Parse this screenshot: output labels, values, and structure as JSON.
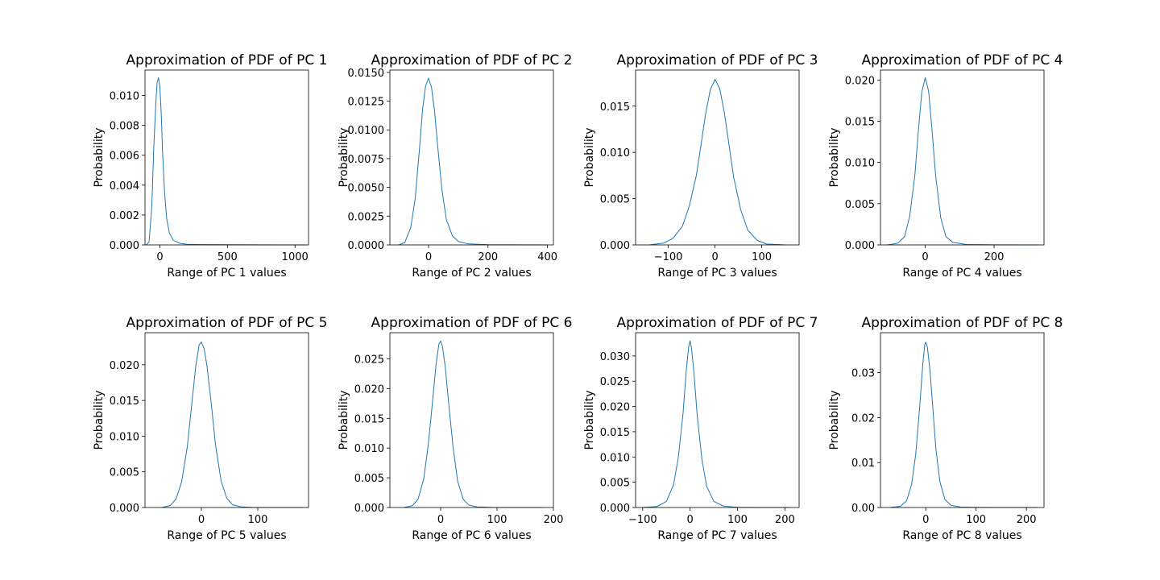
{
  "chart_data": [
    {
      "type": "line",
      "title": "Approximation of PDF of PC 1",
      "xlabel": "Range of PC 1 values",
      "ylabel": "Probability",
      "xlim": [
        -110,
        1100
      ],
      "ylim": [
        0,
        0.0117
      ],
      "xticks": [
        0,
        500,
        1000
      ],
      "yticks": [
        0.0,
        0.002,
        0.004,
        0.006,
        0.008,
        0.01
      ],
      "ytick_decimals": 3,
      "x": [
        -100,
        -80,
        -60,
        -45,
        -30,
        -20,
        -10,
        0,
        10,
        20,
        35,
        50,
        70,
        100,
        150,
        200,
        300,
        500,
        700,
        900,
        1080
      ],
      "y": [
        0,
        0.0002,
        0.0025,
        0.0065,
        0.0095,
        0.0109,
        0.0112,
        0.0106,
        0.0088,
        0.0062,
        0.0035,
        0.0018,
        0.0008,
        0.0003,
        0.0001,
        4e-05,
        2e-05,
        1e-05,
        5e-06,
        2e-06,
        0
      ]
    },
    {
      "type": "line",
      "title": "Approximation of PDF of PC 2",
      "xlabel": "Range of PC 2 values",
      "ylabel": "Probability",
      "xlim": [
        -130,
        420
      ],
      "ylim": [
        0,
        0.0152
      ],
      "xticks": [
        0,
        200,
        400
      ],
      "yticks": [
        0.0,
        0.0025,
        0.005,
        0.0075,
        0.01,
        0.0125,
        0.015
      ],
      "ytick_decimals": 4,
      "x": [
        -100,
        -80,
        -60,
        -45,
        -30,
        -20,
        -10,
        0,
        10,
        20,
        30,
        45,
        60,
        80,
        100,
        130,
        200,
        300,
        400
      ],
      "y": [
        0,
        0.0002,
        0.0015,
        0.004,
        0.0085,
        0.0118,
        0.0138,
        0.0145,
        0.0137,
        0.0117,
        0.0088,
        0.0048,
        0.0022,
        0.0008,
        0.0003,
        0.0001,
        2e-05,
        5e-06,
        0
      ]
    },
    {
      "type": "line",
      "title": "Approximation of PDF of PC 3",
      "xlabel": "Range of PC 3 values",
      "ylabel": "Probability",
      "xlim": [
        -170,
        180
      ],
      "ylim": [
        0,
        0.0189
      ],
      "xticks": [
        -100,
        0,
        100
      ],
      "yticks": [
        0.0,
        0.005,
        0.01,
        0.015
      ],
      "ytick_decimals": 3,
      "x": [
        -140,
        -110,
        -90,
        -70,
        -55,
        -40,
        -30,
        -20,
        -10,
        0,
        10,
        20,
        30,
        40,
        55,
        70,
        90,
        110,
        150
      ],
      "y": [
        0,
        0.0002,
        0.0007,
        0.002,
        0.0042,
        0.0075,
        0.0108,
        0.0142,
        0.0168,
        0.0179,
        0.0169,
        0.0143,
        0.0108,
        0.0073,
        0.0038,
        0.0016,
        0.0005,
        0.0001,
        0
      ]
    },
    {
      "type": "line",
      "title": "Approximation of PDF of PC 4",
      "xlabel": "Range of PC 4 values",
      "ylabel": "Probability",
      "xlim": [
        -130,
        345
      ],
      "ylim": [
        0,
        0.0212
      ],
      "xticks": [
        0,
        200
      ],
      "yticks": [
        0.0,
        0.005,
        0.01,
        0.015,
        0.02
      ],
      "ytick_decimals": 3,
      "x": [
        -110,
        -80,
        -60,
        -45,
        -30,
        -20,
        -10,
        0,
        10,
        20,
        30,
        45,
        60,
        80,
        120,
        200,
        330
      ],
      "y": [
        0,
        0.0002,
        0.001,
        0.0035,
        0.0085,
        0.0138,
        0.0185,
        0.0203,
        0.0186,
        0.0138,
        0.0085,
        0.0033,
        0.001,
        0.0003,
        5e-05,
        1e-05,
        0
      ]
    },
    {
      "type": "line",
      "title": "Approximation of PDF of PC 5",
      "xlabel": "Range of PC 5 values",
      "ylabel": "Probability",
      "xlim": [
        -100,
        190
      ],
      "ylim": [
        0,
        0.0245
      ],
      "xticks": [
        0,
        100
      ],
      "yticks": [
        0.0,
        0.005,
        0.01,
        0.015,
        0.02
      ],
      "ytick_decimals": 3,
      "x": [
        -70,
        -55,
        -45,
        -35,
        -25,
        -18,
        -10,
        -4,
        0,
        5,
        10,
        18,
        25,
        35,
        45,
        55,
        70,
        90,
        120,
        180
      ],
      "y": [
        0,
        0.0003,
        0.0012,
        0.0036,
        0.0085,
        0.0138,
        0.0198,
        0.0228,
        0.0232,
        0.0222,
        0.0198,
        0.0142,
        0.0088,
        0.0037,
        0.0013,
        0.0004,
        0.0001,
        2e-05,
        5e-06,
        0
      ]
    },
    {
      "type": "line",
      "title": "Approximation of PDF of PC 6",
      "xlabel": "Range of PC 6 values",
      "ylabel": "Probability",
      "xlim": [
        -90,
        200
      ],
      "ylim": [
        0,
        0.0294
      ],
      "xticks": [
        0,
        100,
        200
      ],
      "yticks": [
        0.0,
        0.005,
        0.01,
        0.015,
        0.02,
        0.025
      ],
      "ytick_decimals": 3,
      "x": [
        -65,
        -50,
        -40,
        -30,
        -22,
        -15,
        -8,
        -3,
        0,
        3,
        8,
        15,
        22,
        30,
        40,
        50,
        65,
        90,
        130,
        180
      ],
      "y": [
        0,
        0.0003,
        0.0014,
        0.0048,
        0.0105,
        0.0172,
        0.0242,
        0.0275,
        0.028,
        0.0272,
        0.0238,
        0.0168,
        0.0102,
        0.0045,
        0.0014,
        0.0004,
        0.0001,
        2e-05,
        5e-06,
        0
      ]
    },
    {
      "type": "line",
      "title": "Approximation of PDF of PC 7",
      "xlabel": "Range of PC 7 values",
      "ylabel": "Probability",
      "xlim": [
        -115,
        230
      ],
      "ylim": [
        0,
        0.0346
      ],
      "xticks": [
        -100,
        0,
        100,
        200
      ],
      "yticks": [
        0.0,
        0.005,
        0.01,
        0.015,
        0.02,
        0.025,
        0.03
      ],
      "ytick_decimals": 3,
      "x": [
        -100,
        -70,
        -50,
        -35,
        -25,
        -15,
        -8,
        -3,
        0,
        3,
        8,
        15,
        25,
        35,
        50,
        70,
        100,
        150,
        210
      ],
      "y": [
        0,
        0.0002,
        0.0012,
        0.0045,
        0.0098,
        0.0185,
        0.0272,
        0.0318,
        0.033,
        0.0315,
        0.0268,
        0.0182,
        0.0095,
        0.0042,
        0.0012,
        0.0003,
        5e-05,
        1e-05,
        0
      ]
    },
    {
      "type": "line",
      "title": "Approximation of PDF of PC 8",
      "xlabel": "Range of PC 8 values",
      "ylabel": "Probability",
      "xlim": [
        -90,
        235
      ],
      "ylim": [
        0,
        0.0389
      ],
      "xticks": [
        0,
        100,
        200
      ],
      "yticks": [
        0.0,
        0.01,
        0.02,
        0.03
      ],
      "ytick_decimals": 2,
      "x": [
        -70,
        -50,
        -38,
        -28,
        -20,
        -12,
        -6,
        -2,
        0,
        3,
        8,
        14,
        20,
        28,
        38,
        50,
        70,
        100,
        150,
        220
      ],
      "y": [
        0,
        0.0003,
        0.0015,
        0.0052,
        0.0118,
        0.0225,
        0.0318,
        0.0362,
        0.0368,
        0.0358,
        0.031,
        0.0222,
        0.0132,
        0.0058,
        0.0018,
        0.0005,
        0.0001,
        2e-05,
        5e-06,
        0
      ]
    }
  ],
  "style": {
    "line_color": "#1f77b4"
  }
}
